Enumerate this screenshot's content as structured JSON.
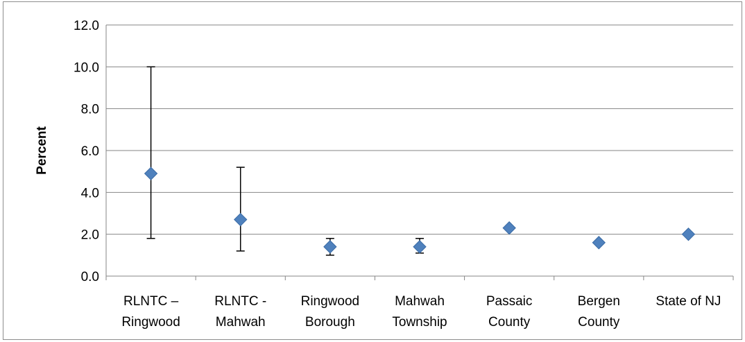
{
  "chart_data": {
    "type": "scatter",
    "title": "",
    "xlabel": "",
    "ylabel": "Percent",
    "ylim": [
      0,
      12
    ],
    "yticks": [
      "0.0",
      "2.0",
      "4.0",
      "6.0",
      "8.0",
      "10.0",
      "12.0"
    ],
    "grid": true,
    "legend": "none",
    "marker_color": "#4F81BD",
    "categories": [
      [
        "RLNTC –",
        "Ringwood"
      ],
      [
        "RLNTC -",
        "Mahwah"
      ],
      [
        "Ringwood",
        "Borough"
      ],
      [
        "Mahwah",
        "Township"
      ],
      [
        "Passaic",
        "County"
      ],
      [
        "Bergen",
        "County"
      ],
      [
        "State of NJ"
      ]
    ],
    "values": [
      4.9,
      2.7,
      1.4,
      1.4,
      2.3,
      1.6,
      2.0
    ],
    "error_bars": [
      {
        "low": 1.8,
        "high": 10.0
      },
      {
        "low": 1.2,
        "high": 5.2
      },
      {
        "low": 1.0,
        "high": 1.8
      },
      {
        "low": 1.1,
        "high": 1.8
      },
      null,
      null,
      null
    ]
  }
}
